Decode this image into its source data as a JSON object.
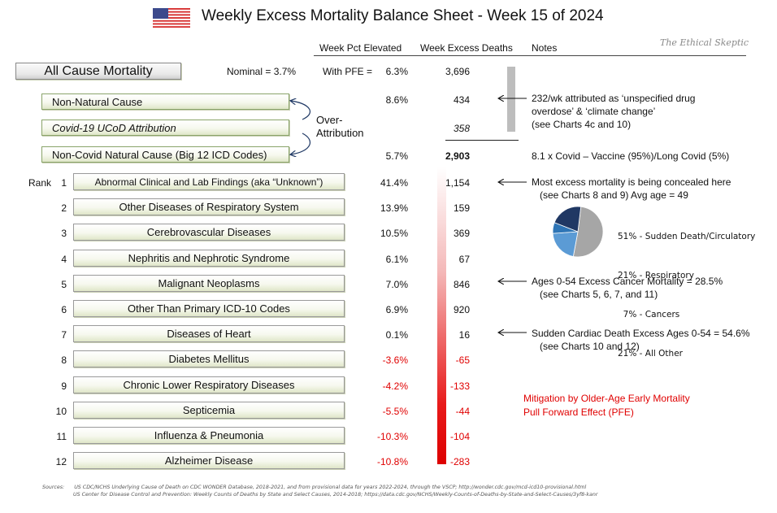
{
  "title": "Weekly Excess Mortality Balance Sheet - Week 15 of 2024",
  "brand": "The Ethical Skeptic",
  "headers": {
    "pct": "Week Pct Elevated",
    "deaths": "Week Excess Deaths",
    "notes": "Notes"
  },
  "all_cause": {
    "label": "All Cause Mortality",
    "nominal_label": "Nominal = 3.7%",
    "pfe_label": "With PFE =",
    "pct": "6.3%",
    "deaths": "3,696"
  },
  "categories": [
    {
      "label": "Non-Natural Cause",
      "pct": "8.6%",
      "deaths": "434"
    },
    {
      "label": "Covid-19 UCoD Attribution",
      "pct": "",
      "deaths": "358"
    },
    {
      "label": "Non-Covid Natural Cause (Big 12 ICD Codes)",
      "pct": "5.7%",
      "deaths": "2,903"
    }
  ],
  "over_attribution": {
    "line1": "Over-",
    "line2": "Attribution"
  },
  "rank_label": "Rank",
  "ranks": [
    {
      "rank": "1",
      "label": "Abnormal Clinical and Lab Findings (aka “Unknown”)",
      "pct": "41.4%",
      "deaths": "1,154"
    },
    {
      "rank": "2",
      "label": "Other Diseases of Respiratory System",
      "pct": "13.9%",
      "deaths": "159"
    },
    {
      "rank": "3",
      "label": "Cerebrovascular Diseases",
      "pct": "10.5%",
      "deaths": "369"
    },
    {
      "rank": "4",
      "label": "Nephritis and Nephrotic Syndrome",
      "pct": "6.1%",
      "deaths": "67"
    },
    {
      "rank": "5",
      "label": "Malignant Neoplasms",
      "pct": "7.0%",
      "deaths": "846"
    },
    {
      "rank": "6",
      "label": "Other Than Primary ICD-10 Codes",
      "pct": "6.9%",
      "deaths": "920"
    },
    {
      "rank": "7",
      "label": "Diseases of Heart",
      "pct": "0.1%",
      "deaths": "16"
    },
    {
      "rank": "8",
      "label": "Diabetes Mellitus",
      "pct": "-3.6%",
      "deaths": "-65"
    },
    {
      "rank": "9",
      "label": "Chronic Lower Respiratory Diseases",
      "pct": "-4.2%",
      "deaths": "-133"
    },
    {
      "rank": "10",
      "label": "Septicemia",
      "pct": "-5.5%",
      "deaths": "-44"
    },
    {
      "rank": "11",
      "label": "Influenza & Pneumonia",
      "pct": "-10.3%",
      "deaths": "-104"
    },
    {
      "rank": "12",
      "label": "Alzheimer Disease",
      "pct": "-10.8%",
      "deaths": "-283"
    }
  ],
  "notes": {
    "non_natural": [
      "232/wk attributed as ‘unspecified drug",
      "overdose’ & ‘climate change’",
      "(see Charts 4c and 10)"
    ],
    "non_covid": "8.1 x Covid – Vaccine (95%)/Long Covid (5%)",
    "unknown": [
      "Most excess mortality is being concealed here",
      "(see Charts 8 and 9) Avg age = 49"
    ],
    "cancer": [
      "Ages 0-54 Excess Cancer Mortality = 28.5%",
      "(see Charts 5, 6, 7, and 11)"
    ],
    "heart": [
      "Sudden Cardiac Death Excess Ages 0-54 = 54.6%",
      "(see Charts 10 and 12)"
    ],
    "pfe": [
      "Mitigation by Older-Age Early Mortality",
      "Pull Forward Effect (PFE)"
    ]
  },
  "chart_data": {
    "type": "pie",
    "slices": [
      {
        "label": "51% - Sudden Death/Circulatory",
        "value": 51,
        "color": "#a6a6a6"
      },
      {
        "label": "21% - Respiratory",
        "value": 21,
        "color": "#5b9bd5"
      },
      {
        "label": "7% - Cancers",
        "value": 7,
        "color": "#2e75b6"
      },
      {
        "label": "21% - All Other",
        "value": 21,
        "color": "#203864"
      }
    ],
    "legend_text": [
      "51% - Sudden Death/Circulatory",
      "21% - Respiratory",
      "  7% - Cancers",
      "21% - All Other"
    ]
  },
  "sources": {
    "label": "Sources:",
    "line1": "US CDC/NCHS Underlying Cause of Death on CDC WONDER Database, 2018-2021, and from provisional data for years 2022-2024, through the VSCP; http://wonder.cdc.gov/mcd-icd10-provisional.html",
    "line2": "US Center for Disease Control and Prevention: Weekly Counts of Deaths by State and Select Causes, 2014-2018; https://data.cdc.gov/NCHS/Weekly-Counts-of-Deaths-by-State-and-Select-Causes/3yf8-kanr"
  },
  "colors": {
    "negative": "#e00000",
    "accent_red": "#dd0000",
    "box_green": "#8aa46a"
  }
}
